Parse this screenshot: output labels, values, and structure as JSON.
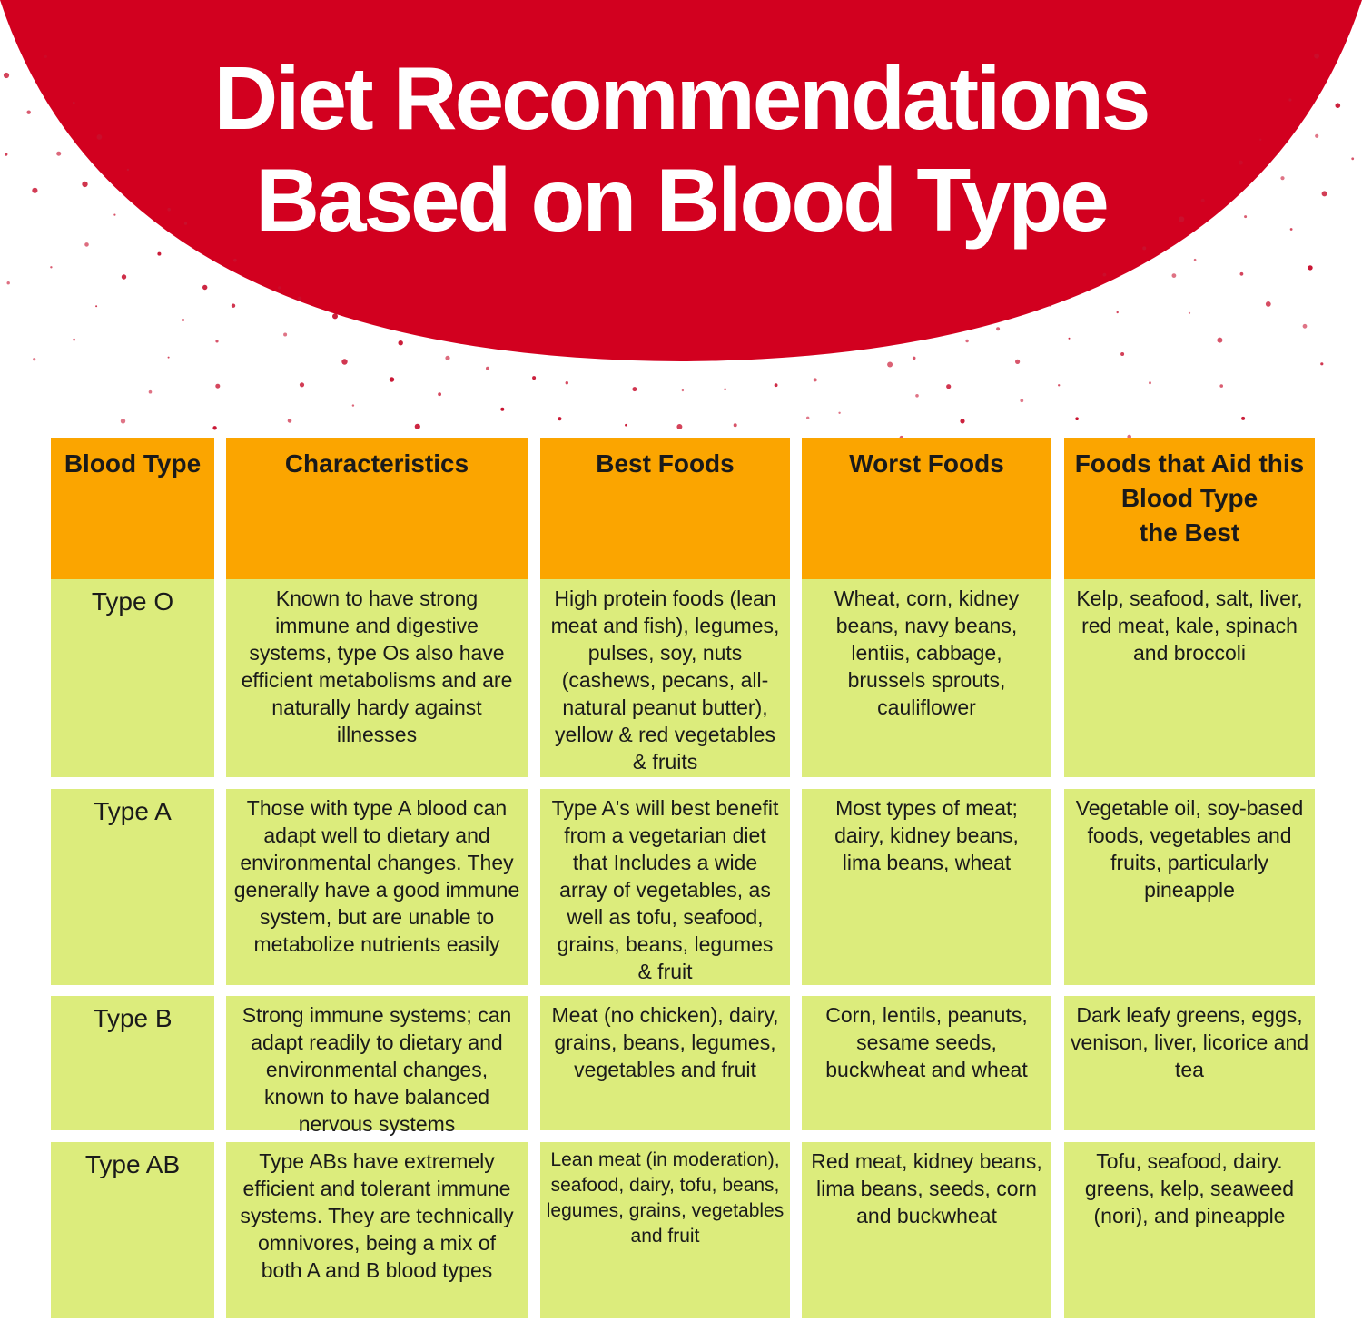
{
  "title": {
    "line1": "Diet Recommendations",
    "line2": "Based on Blood Type"
  },
  "colors": {
    "banner_red": "#d2001f",
    "header_orange": "#fba500",
    "cell_green": "#dcec7c",
    "dot_red": "#c8102e"
  },
  "table": {
    "headers": [
      {
        "label": "Blood Type"
      },
      {
        "label": "Characteristics"
      },
      {
        "label": "Best Foods"
      },
      {
        "label": "Worst Foods"
      },
      {
        "label": "Foods that Aid this\nBlood Type\nthe Best"
      }
    ],
    "rows": [
      {
        "type": "Type O",
        "characteristics": "Known to have strong immune and digestive systems, type Os also have efficient metabolisms and are naturally hardy against illnesses",
        "best": "High protein foods (lean meat and fish), legumes, pulses, soy, nuts (cashews, pecans, all-natural peanut butter), yellow & red vegetables & fruits",
        "worst": "Wheat, corn, kidney beans, navy beans, lentiis, cabbage, brussels sprouts, cauliflower",
        "aid": "Kelp, seafood, salt, liver, red meat, kale, spinach and broccoli"
      },
      {
        "type": "Type A",
        "characteristics": "Those with type A blood can adapt well to dietary and environmental changes. They generally have a good immune system, but are unable to metabolize nutrients easily",
        "best": "Type A's will best benefit from a vegetarian diet that Includes a wide array of vegetables, as well as tofu, seafood, grains, beans, legumes & fruit",
        "worst": "Most types of meat; dairy, kidney beans, lima beans, wheat",
        "aid": "Vegetable oil, soy-based foods, vegetables and fruits, particularly pineapple"
      },
      {
        "type": "Type B",
        "characteristics": "Strong immune systems; can adapt readily to dietary and environmental changes, known to have balanced nervous systems",
        "best": "Meat (no chicken), dairy, grains, beans, legumes, vegetables and fruit",
        "worst": "Corn, lentils, peanuts, sesame seeds, buckwheat and wheat",
        "aid": "Dark leafy greens, eggs, venison, liver, licorice and tea"
      },
      {
        "type": "Type AB",
        "characteristics": "Type ABs have extremely efficient and tolerant immune systems. They are technically omnivores, being a mix of both A and B blood types",
        "best": "Lean meat (in moderation), seafood, dairy, tofu, beans, legumes, grains, vegetables and fruit",
        "worst": "Red meat, kidney beans, lima beans, seeds, corn and buckwheat",
        "aid": "Tofu, seafood, dairy. greens, kelp, seaweed (nori), and pineapple"
      }
    ]
  }
}
